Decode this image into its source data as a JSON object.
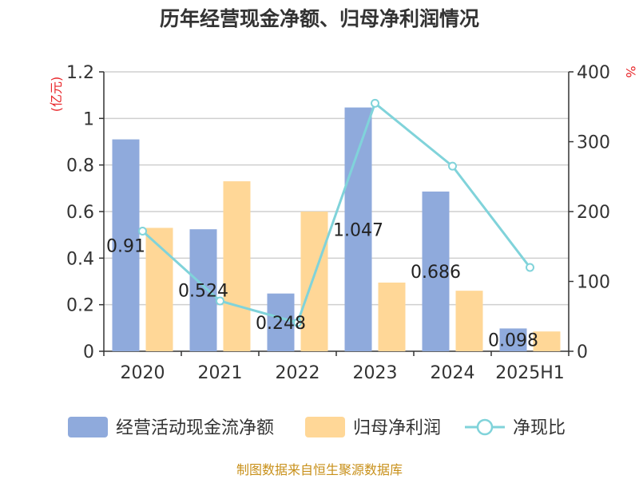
{
  "title": "历年经营现金净额、归母净利润情况",
  "source": "制图数据来自恒生聚源数据库",
  "colors": {
    "cash": "#8faadc",
    "profit": "#ffd797",
    "ratio": "#80d3da",
    "unit": "#e8262a",
    "source": "#c8901a"
  },
  "chart_data": {
    "type": "bar",
    "categories": [
      "2020",
      "2021",
      "2022",
      "2023",
      "2024",
      "2025H1"
    ],
    "left_axis": {
      "unit": "(亿元)",
      "ylim": [
        0,
        1.2
      ],
      "ticks": [
        "0",
        "0.2",
        "0.4",
        "0.6",
        "0.8",
        "1",
        "1.2"
      ]
    },
    "right_axis": {
      "unit": "%",
      "ylim": [
        0,
        400
      ],
      "ticks": [
        "0",
        "100",
        "200",
        "300",
        "400"
      ]
    },
    "series": [
      {
        "name": "经营活动现金流净额",
        "type": "bar",
        "axis": "left",
        "values": [
          0.91,
          0.524,
          0.248,
          1.047,
          0.686,
          0.098
        ],
        "labels": [
          "0.91",
          "0.524",
          "0.248",
          "1.047",
          "0.686",
          "0.098"
        ]
      },
      {
        "name": "归母净利润",
        "type": "bar",
        "axis": "left",
        "values": [
          0.53,
          0.73,
          0.6,
          0.295,
          0.26,
          0.085
        ]
      },
      {
        "name": "净现比",
        "type": "line",
        "axis": "right",
        "values": [
          172,
          72,
          41,
          355,
          265,
          120
        ]
      }
    ],
    "legend_position": "bottom"
  }
}
